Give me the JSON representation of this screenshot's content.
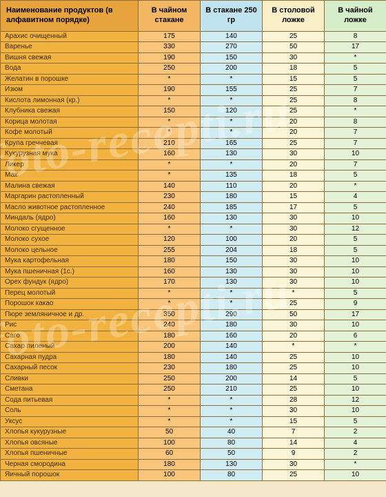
{
  "headers": {
    "name": "Наименование продуктов (в алфавитном порядке)",
    "tea_glass": "В чайном стакане",
    "glass250": "В стакане 250 гр",
    "tablespoon": "В столовой ложке",
    "teaspoon": "В чайной ложке"
  },
  "watermark": "foto-recepti.ru",
  "columns": [
    "name",
    "tea",
    "glass",
    "tbl",
    "tsp"
  ],
  "column_colors": {
    "name_header": "#e8a43c",
    "name_body": "#f2b23f",
    "tea_header": "#f3b763",
    "tea_body": "#f8c57a",
    "glass_header": "#bfe4ef",
    "glass_body": "#d0ecf3",
    "tbl_header": "#f9efc7",
    "tbl_body": "#fbf5d8",
    "tsp_header": "#d6edc9",
    "tsp_body": "#e3f2d6",
    "border": "#8a6d3b"
  },
  "rows": [
    {
      "name": "Арахис очищенный",
      "tea": "175",
      "glass": "140",
      "tbl": "25",
      "tsp": "8"
    },
    {
      "name": "Варенье",
      "tea": "330",
      "glass": "270",
      "tbl": "50",
      "tsp": "17"
    },
    {
      "name": "Вишня свежая",
      "tea": "190",
      "glass": "150",
      "tbl": "30",
      "tsp": "*"
    },
    {
      "name": "Вода",
      "tea": "250",
      "glass": "200",
      "tbl": "18",
      "tsp": "5"
    },
    {
      "name": "Желатин в порошке",
      "tea": "*",
      "glass": "*",
      "tbl": "15",
      "tsp": "5"
    },
    {
      "name": "Изюм",
      "tea": "190",
      "glass": "155",
      "tbl": "25",
      "tsp": "7"
    },
    {
      "name": "Кислота лимонная (кр.)",
      "tea": "*",
      "glass": "*",
      "tbl": "25",
      "tsp": "8"
    },
    {
      "name": "Клубника свежая",
      "tea": "150",
      "glass": "120",
      "tbl": "25",
      "tsp": "*"
    },
    {
      "name": "Корица молотая",
      "tea": "*",
      "glass": "*",
      "tbl": "20",
      "tsp": "8"
    },
    {
      "name": "Кофе молотый",
      "tea": "*",
      "glass": "*",
      "tbl": "20",
      "tsp": "7"
    },
    {
      "name": "Крупа гречневая",
      "tea": "210",
      "glass": "165",
      "tbl": "25",
      "tsp": "7"
    },
    {
      "name": "Кукурузная мука",
      "tea": "160",
      "glass": "130",
      "tbl": "30",
      "tsp": "10"
    },
    {
      "name": "Ликер",
      "tea": "*",
      "glass": "*",
      "tbl": "20",
      "tsp": "7"
    },
    {
      "name": "Мак",
      "tea": "*",
      "glass": "135",
      "tbl": "18",
      "tsp": "5"
    },
    {
      "name": "Малина свежая",
      "tea": "140",
      "glass": "110",
      "tbl": "20",
      "tsp": "*"
    },
    {
      "name": "Маргарин растопленный",
      "tea": "230",
      "glass": "180",
      "tbl": "15",
      "tsp": "4"
    },
    {
      "name": "Масло животное растопленное",
      "tea": "240",
      "glass": "185",
      "tbl": "17",
      "tsp": "5"
    },
    {
      "name": "Миндаль (ядро)",
      "tea": "160",
      "glass": "130",
      "tbl": "30",
      "tsp": "10"
    },
    {
      "name": "Молоко сгущенное",
      "tea": "*",
      "glass": "*",
      "tbl": "30",
      "tsp": "12"
    },
    {
      "name": "Молоко сухое",
      "tea": "120",
      "glass": "100",
      "tbl": "20",
      "tsp": "5"
    },
    {
      "name": "Молоко цельное",
      "tea": "255",
      "glass": "204",
      "tbl": "18",
      "tsp": "5"
    },
    {
      "name": "Мука картофельная",
      "tea": "180",
      "glass": "150",
      "tbl": "30",
      "tsp": "10"
    },
    {
      "name": "Мука пшеничная (1с.)",
      "tea": "160",
      "glass": "130",
      "tbl": "30",
      "tsp": "10"
    },
    {
      "name": "Орех фундук (ядро)",
      "tea": "170",
      "glass": "130",
      "tbl": "30",
      "tsp": "10"
    },
    {
      "name": "Перец молотый",
      "tea": "*",
      "glass": "*",
      "tbl": "*",
      "tsp": "5"
    },
    {
      "name": "Порошок какао",
      "tea": "*",
      "glass": "*",
      "tbl": "25",
      "tsp": "9"
    },
    {
      "name": "Пюре земляничное и др.",
      "tea": "350",
      "glass": "290",
      "tbl": "50",
      "tsp": "17"
    },
    {
      "name": "Рис",
      "tea": "240",
      "glass": "180",
      "tbl": "30",
      "tsp": "10"
    },
    {
      "name": "Саго",
      "tea": "180",
      "glass": "160",
      "tbl": "20",
      "tsp": "6"
    },
    {
      "name": "Сахар пиленый",
      "tea": "200",
      "glass": "140",
      "tbl": "*",
      "tsp": "*"
    },
    {
      "name": "Сахарная пудра",
      "tea": "180",
      "glass": "140",
      "tbl": "25",
      "tsp": "10"
    },
    {
      "name": "Сахарный песок",
      "tea": "230",
      "glass": "180",
      "tbl": "25",
      "tsp": "10"
    },
    {
      "name": "Сливки",
      "tea": "250",
      "glass": "200",
      "tbl": "14",
      "tsp": "5"
    },
    {
      "name": "Сметана",
      "tea": "250",
      "glass": "210",
      "tbl": "25",
      "tsp": "10"
    },
    {
      "name": "Сода питьевая",
      "tea": "*",
      "glass": "*",
      "tbl": "28",
      "tsp": "12"
    },
    {
      "name": "Соль",
      "tea": "*",
      "glass": "*",
      "tbl": "30",
      "tsp": "10"
    },
    {
      "name": "Уксус",
      "tea": "*",
      "glass": "*",
      "tbl": "15",
      "tsp": "5"
    },
    {
      "name": "Хлопья кукурузные",
      "tea": "50",
      "glass": "40",
      "tbl": "7",
      "tsp": "2"
    },
    {
      "name": "Хлопья овсяные",
      "tea": "100",
      "glass": "80",
      "tbl": "14",
      "tsp": "4"
    },
    {
      "name": "Хлопья пшеничные",
      "tea": "60",
      "glass": "50",
      "tbl": "9",
      "tsp": "2"
    },
    {
      "name": "Черная смородина",
      "tea": "180",
      "glass": "130",
      "tbl": "30",
      "tsp": "*"
    },
    {
      "name": "Яичный порошок",
      "tea": "100",
      "glass": "80",
      "tbl": "25",
      "tsp": "10"
    }
  ]
}
